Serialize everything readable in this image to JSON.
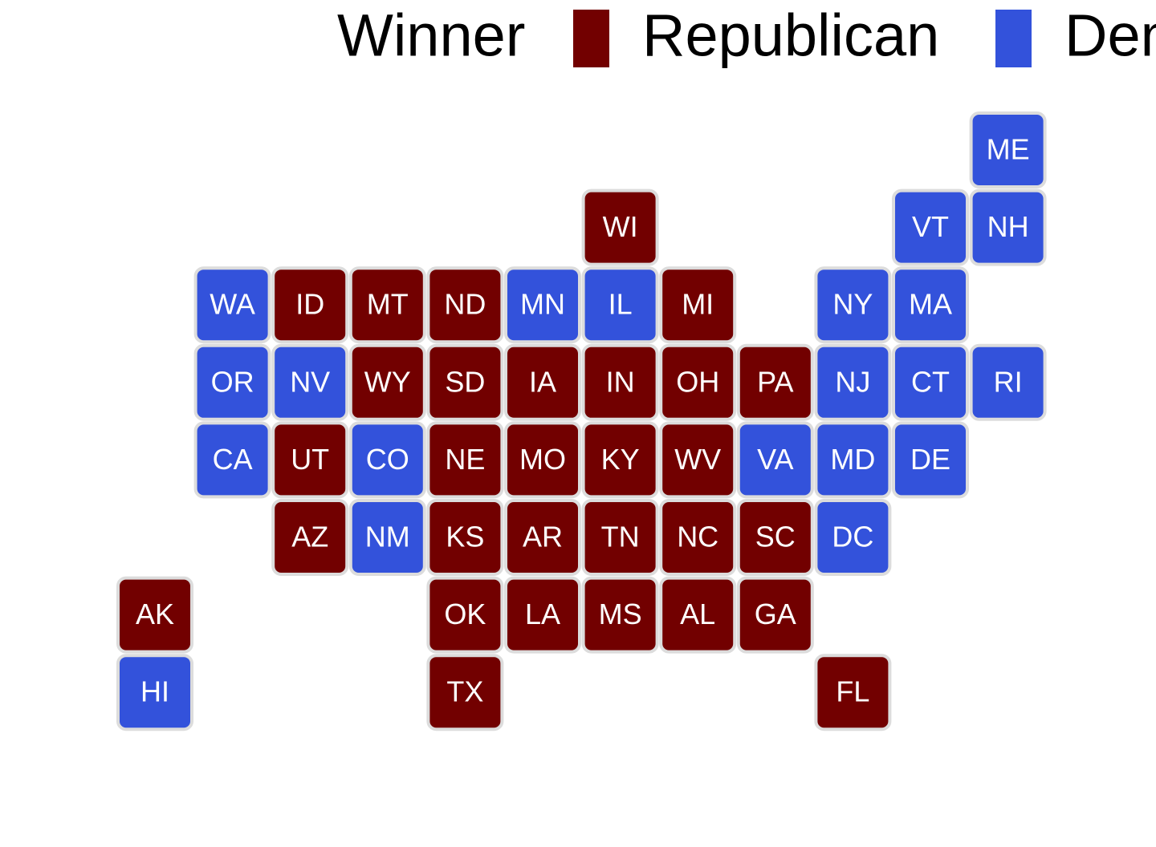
{
  "legend": {
    "title": "Winner",
    "entries": [
      {
        "name": "Republican",
        "color": "#720000"
      },
      {
        "name": "Democrat",
        "color": "#3352db"
      }
    ]
  },
  "states": [
    {
      "abbr": "ME",
      "winner": "Democrat"
    },
    {
      "abbr": "WI",
      "winner": "Republican"
    },
    {
      "abbr": "VT",
      "winner": "Democrat"
    },
    {
      "abbr": "NH",
      "winner": "Democrat"
    },
    {
      "abbr": "WA",
      "winner": "Democrat"
    },
    {
      "abbr": "ID",
      "winner": "Republican"
    },
    {
      "abbr": "MT",
      "winner": "Republican"
    },
    {
      "abbr": "ND",
      "winner": "Republican"
    },
    {
      "abbr": "MN",
      "winner": "Democrat"
    },
    {
      "abbr": "IL",
      "winner": "Democrat"
    },
    {
      "abbr": "MI",
      "winner": "Republican"
    },
    {
      "abbr": "NY",
      "winner": "Democrat"
    },
    {
      "abbr": "MA",
      "winner": "Democrat"
    },
    {
      "abbr": "OR",
      "winner": "Democrat"
    },
    {
      "abbr": "NV",
      "winner": "Democrat"
    },
    {
      "abbr": "WY",
      "winner": "Republican"
    },
    {
      "abbr": "SD",
      "winner": "Republican"
    },
    {
      "abbr": "IA",
      "winner": "Republican"
    },
    {
      "abbr": "IN",
      "winner": "Republican"
    },
    {
      "abbr": "OH",
      "winner": "Republican"
    },
    {
      "abbr": "PA",
      "winner": "Republican"
    },
    {
      "abbr": "NJ",
      "winner": "Democrat"
    },
    {
      "abbr": "CT",
      "winner": "Democrat"
    },
    {
      "abbr": "RI",
      "winner": "Democrat"
    },
    {
      "abbr": "CA",
      "winner": "Democrat"
    },
    {
      "abbr": "UT",
      "winner": "Republican"
    },
    {
      "abbr": "CO",
      "winner": "Democrat"
    },
    {
      "abbr": "NE",
      "winner": "Republican"
    },
    {
      "abbr": "MO",
      "winner": "Republican"
    },
    {
      "abbr": "KY",
      "winner": "Republican"
    },
    {
      "abbr": "WV",
      "winner": "Republican"
    },
    {
      "abbr": "VA",
      "winner": "Democrat"
    },
    {
      "abbr": "MD",
      "winner": "Democrat"
    },
    {
      "abbr": "DE",
      "winner": "Democrat"
    },
    {
      "abbr": "AZ",
      "winner": "Republican"
    },
    {
      "abbr": "NM",
      "winner": "Democrat"
    },
    {
      "abbr": "KS",
      "winner": "Republican"
    },
    {
      "abbr": "AR",
      "winner": "Republican"
    },
    {
      "abbr": "TN",
      "winner": "Republican"
    },
    {
      "abbr": "NC",
      "winner": "Republican"
    },
    {
      "abbr": "SC",
      "winner": "Republican"
    },
    {
      "abbr": "DC",
      "winner": "Democrat"
    },
    {
      "abbr": "AK",
      "winner": "Republican"
    },
    {
      "abbr": "OK",
      "winner": "Republican"
    },
    {
      "abbr": "LA",
      "winner": "Republican"
    },
    {
      "abbr": "MS",
      "winner": "Republican"
    },
    {
      "abbr": "AL",
      "winner": "Republican"
    },
    {
      "abbr": "GA",
      "winner": "Republican"
    },
    {
      "abbr": "HI",
      "winner": "Democrat"
    },
    {
      "abbr": "TX",
      "winner": "Republican"
    },
    {
      "abbr": "FL",
      "winner": "Republican"
    }
  ]
}
